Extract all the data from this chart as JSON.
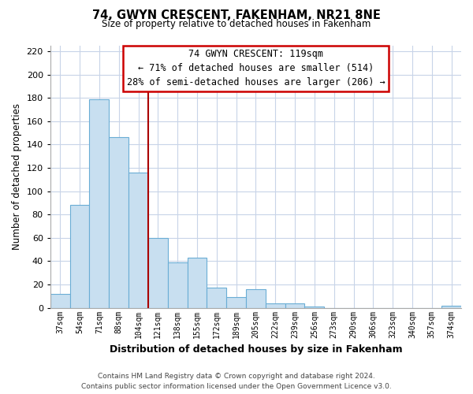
{
  "title": "74, GWYN CRESCENT, FAKENHAM, NR21 8NE",
  "subtitle": "Size of property relative to detached houses in Fakenham",
  "xlabel": "Distribution of detached houses by size in Fakenham",
  "ylabel": "Number of detached properties",
  "bar_labels": [
    "37sqm",
    "54sqm",
    "71sqm",
    "88sqm",
    "104sqm",
    "121sqm",
    "138sqm",
    "155sqm",
    "172sqm",
    "189sqm",
    "205sqm",
    "222sqm",
    "239sqm",
    "256sqm",
    "273sqm",
    "290sqm",
    "306sqm",
    "323sqm",
    "340sqm",
    "357sqm",
    "374sqm"
  ],
  "bar_values": [
    12,
    88,
    179,
    146,
    116,
    60,
    39,
    43,
    17,
    9,
    16,
    4,
    4,
    1,
    0,
    0,
    0,
    0,
    0,
    0,
    2
  ],
  "bar_color": "#c8dff0",
  "bar_edge_color": "#6aadd5",
  "red_line_index": 5,
  "annotation_line1": "74 GWYN CRESCENT: 119sqm",
  "annotation_line2": "← 71% of detached houses are smaller (514)",
  "annotation_line3": "28% of semi-detached houses are larger (206) →",
  "ylim": [
    0,
    225
  ],
  "yticks": [
    0,
    20,
    40,
    60,
    80,
    100,
    120,
    140,
    160,
    180,
    200,
    220
  ],
  "background_color": "#ffffff",
  "grid_color": "#c8d4e8",
  "footer_line1": "Contains HM Land Registry data © Crown copyright and database right 2024.",
  "footer_line2": "Contains public sector information licensed under the Open Government Licence v3.0.",
  "red_line_color": "#aa0000",
  "annotation_box_color": "#ffffff",
  "annotation_box_edge_color": "#cc0000"
}
